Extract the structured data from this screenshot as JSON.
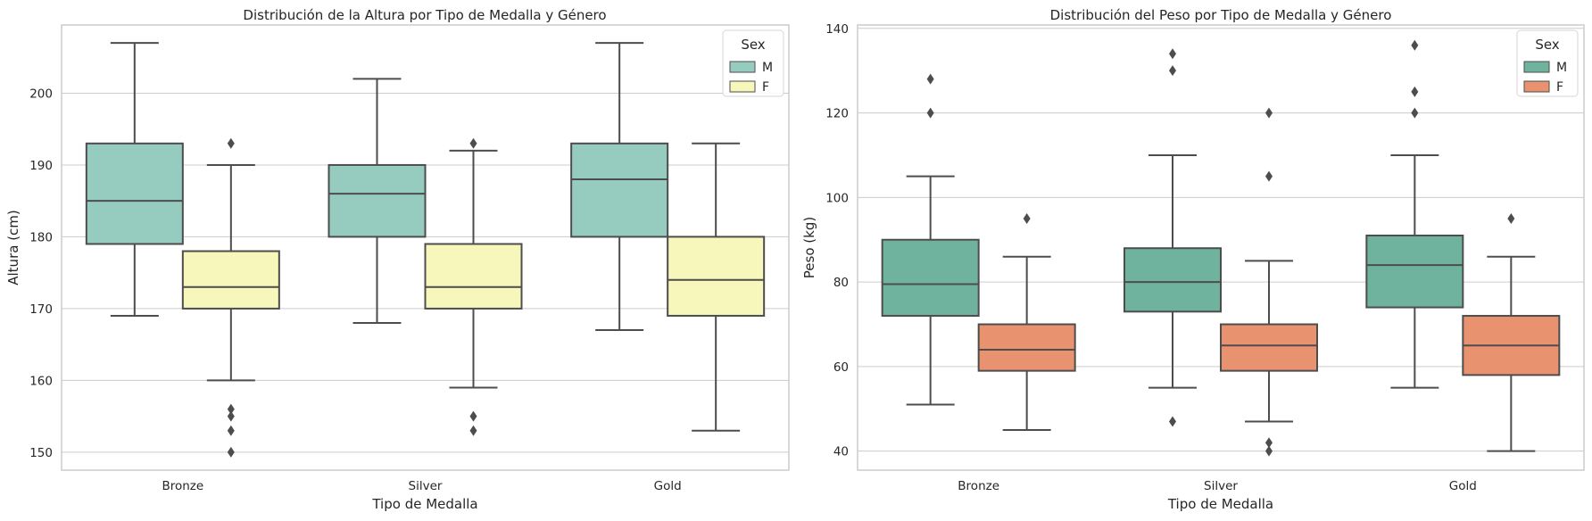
{
  "chart_data": [
    {
      "type": "box",
      "title": "Distribución de la Altura por Tipo de Medalla y Género",
      "xlabel": "Tipo de Medalla",
      "ylabel": "Altura (cm)",
      "categories": [
        "Bronze",
        "Silver",
        "Gold"
      ],
      "ylim": [
        147.5,
        209.5
      ],
      "yticks": [
        150,
        160,
        170,
        180,
        190,
        200
      ],
      "grid": "horizontal",
      "legend": {
        "title": "Sex",
        "position": "top-right",
        "entries": [
          "M",
          "F"
        ]
      },
      "series": [
        {
          "name": "M",
          "color": "#96cbc0",
          "boxes": [
            {
              "whisker_low": 169,
              "q1": 179,
              "median": 185,
              "q3": 193,
              "whisker_high": 207,
              "outliers": []
            },
            {
              "whisker_low": 168,
              "q1": 180,
              "median": 186,
              "q3": 190,
              "whisker_high": 202,
              "outliers": []
            },
            {
              "whisker_low": 167,
              "q1": 180,
              "median": 188,
              "q3": 193,
              "whisker_high": 207,
              "outliers": []
            }
          ]
        },
        {
          "name": "F",
          "color": "#f7f6bb",
          "boxes": [
            {
              "whisker_low": 160,
              "q1": 170,
              "median": 173,
              "q3": 178,
              "whisker_high": 190,
              "outliers": [
                193,
                156,
                155,
                153,
                150
              ]
            },
            {
              "whisker_low": 159,
              "q1": 170,
              "median": 173,
              "q3": 179,
              "whisker_high": 192,
              "outliers": [
                193,
                155,
                153
              ]
            },
            {
              "whisker_low": 153,
              "q1": 169,
              "median": 174,
              "q3": 180,
              "whisker_high": 193,
              "outliers": []
            }
          ]
        }
      ]
    },
    {
      "type": "box",
      "title": "Distribución del Peso por Tipo de Medalla y Género",
      "xlabel": "Tipo de Medalla",
      "ylabel": "Peso (kg)",
      "categories": [
        "Bronze",
        "Silver",
        "Gold"
      ],
      "ylim": [
        35.5,
        140.8
      ],
      "yticks": [
        40,
        60,
        80,
        100,
        120,
        140
      ],
      "grid": "horizontal",
      "legend": {
        "title": "Sex",
        "position": "top-right",
        "entries": [
          "M",
          "F"
        ]
      },
      "series": [
        {
          "name": "M",
          "color": "#6fb39f",
          "boxes": [
            {
              "whisker_low": 51,
              "q1": 72,
              "median": 79.5,
              "q3": 90,
              "whisker_high": 105,
              "outliers": [
                128,
                120
              ]
            },
            {
              "whisker_low": 55,
              "q1": 73,
              "median": 80,
              "q3": 88,
              "whisker_high": 110,
              "outliers": [
                134,
                130,
                47
              ]
            },
            {
              "whisker_low": 55,
              "q1": 74,
              "median": 84,
              "q3": 91,
              "whisker_high": 110,
              "outliers": [
                136,
                125,
                120
              ]
            }
          ]
        },
        {
          "name": "F",
          "color": "#e8926f",
          "boxes": [
            {
              "whisker_low": 45,
              "q1": 59,
              "median": 64,
              "q3": 70,
              "whisker_high": 86,
              "outliers": [
                95
              ]
            },
            {
              "whisker_low": 47,
              "q1": 59,
              "median": 65,
              "q3": 70,
              "whisker_high": 85,
              "outliers": [
                120,
                105,
                42,
                40
              ]
            },
            {
              "whisker_low": 40,
              "q1": 58,
              "median": 65,
              "q3": 72,
              "whisker_high": 86,
              "outliers": [
                95
              ]
            }
          ]
        }
      ]
    }
  ]
}
